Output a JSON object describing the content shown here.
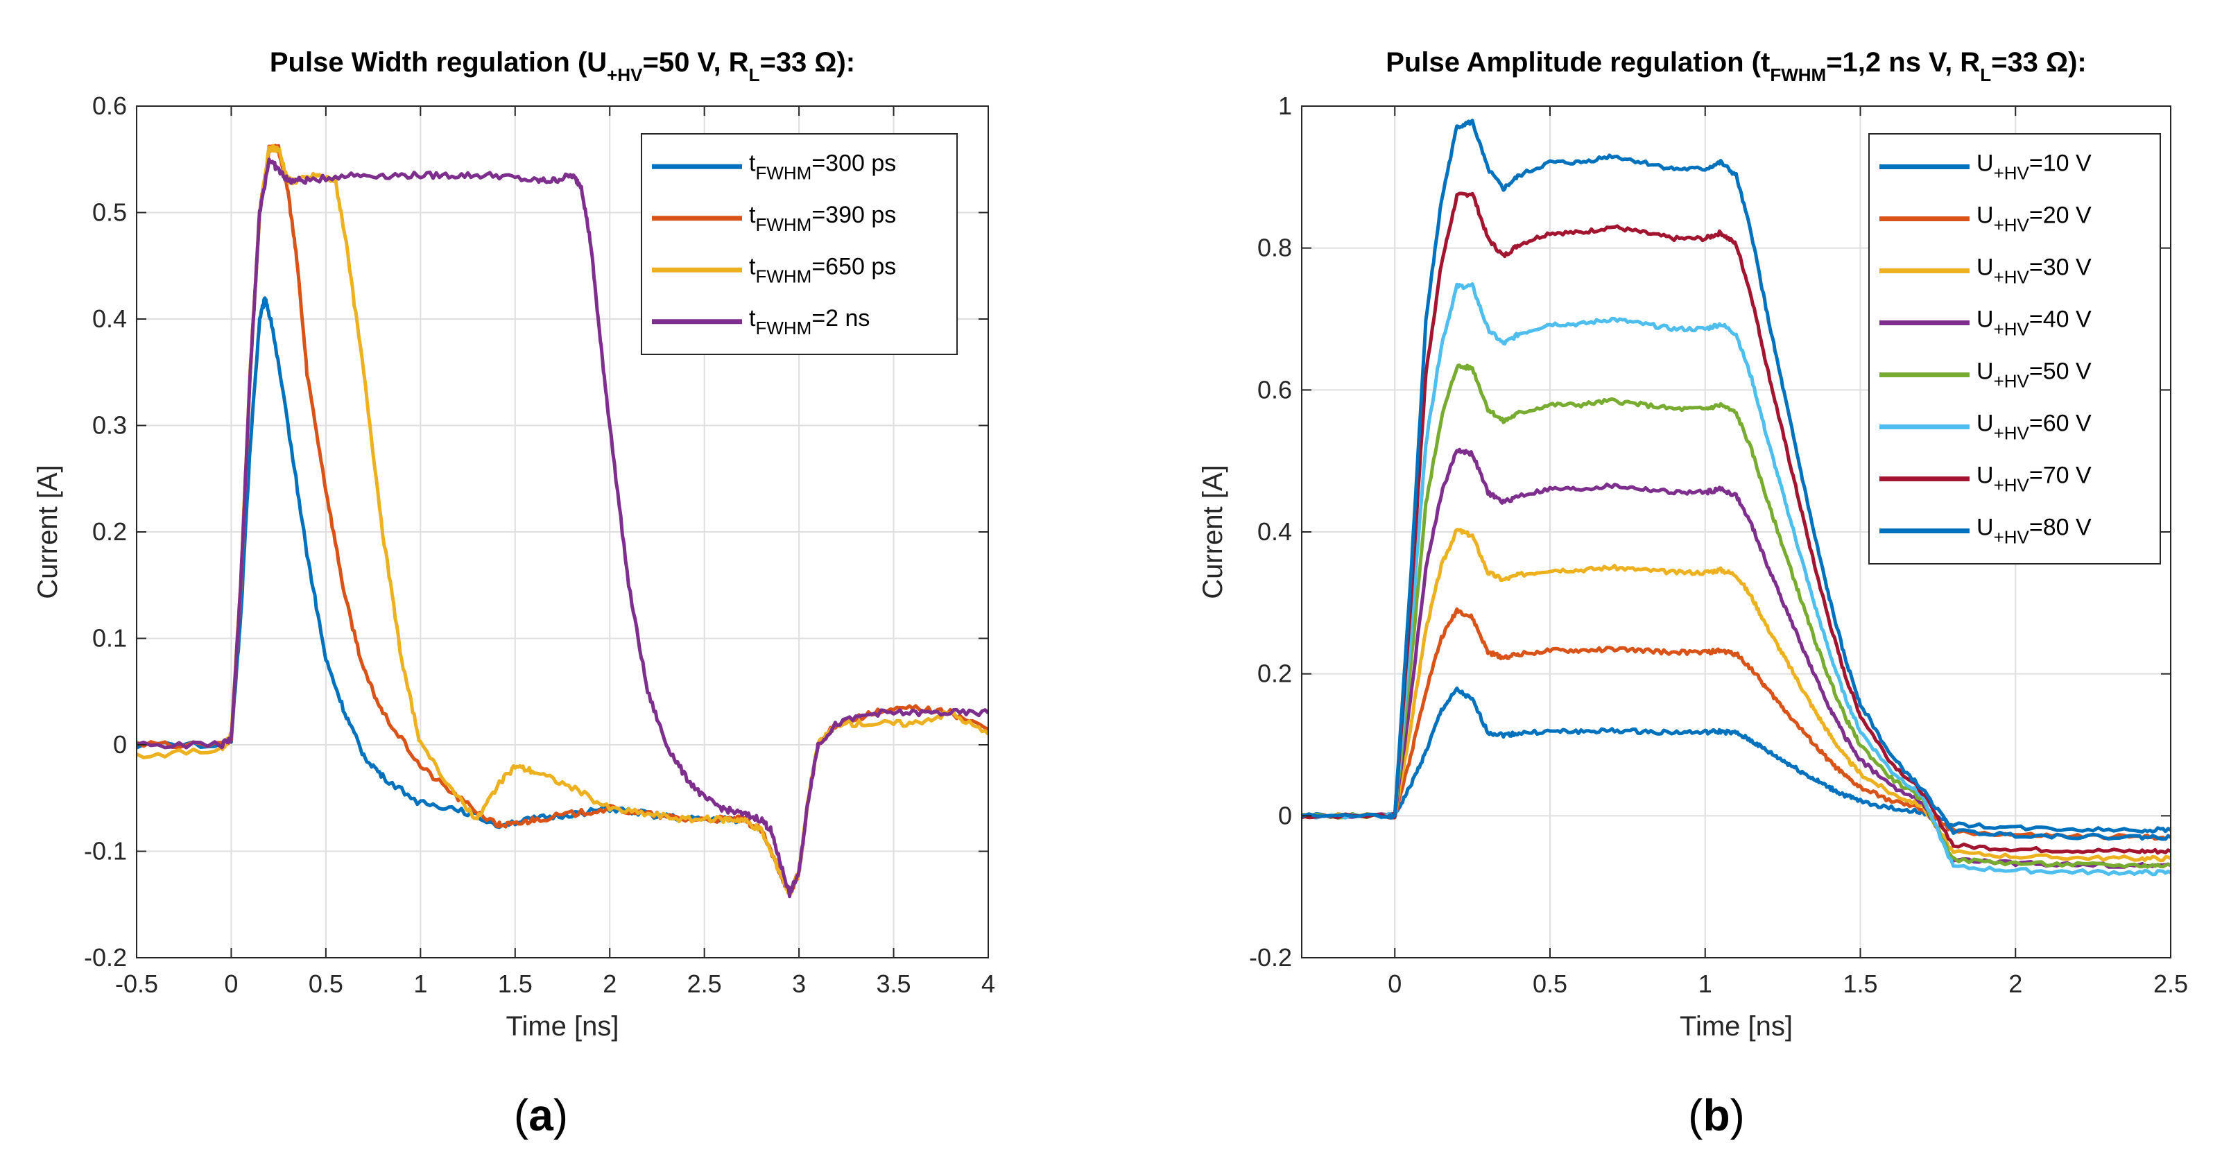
{
  "chart_data": [
    {
      "type": "line",
      "panel_label": "a",
      "title": {
        "prefix": "Pulse Width regulation (U",
        "sub": "+HV",
        "mid": "=50 V, R",
        "sub2": "L",
        "suffix": "=33 Ω):"
      },
      "xlabel": "Time [ns]",
      "ylabel": "Current [A]",
      "xlim": [
        -0.5,
        4
      ],
      "ylim": [
        -0.2,
        0.6
      ],
      "xticks": [
        -0.5,
        0,
        0.5,
        1,
        1.5,
        2,
        2.5,
        3,
        3.5,
        4
      ],
      "xtick_labels": [
        "-0.5",
        "0",
        "0.5",
        "1",
        "1.5",
        "2",
        "2.5",
        "3",
        "3.5",
        "4"
      ],
      "yticks": [
        -0.2,
        -0.1,
        0,
        0.1,
        0.2,
        0.3,
        0.4,
        0.5,
        0.6
      ],
      "ytick_labels": [
        "-0.2",
        "-0.1",
        "0",
        "0.1",
        "0.2",
        "0.3",
        "0.4",
        "0.5",
        "0.6"
      ],
      "grid": true,
      "legend_position": "top-right",
      "series": [
        {
          "name": "tFWHM=300 ps",
          "label_main": "t",
          "label_sub": "FWHM",
          "label_rest": "=300 ps",
          "color": "#0072BD",
          "x": [
            -0.5,
            -0.05,
            0.0,
            0.05,
            0.1,
            0.15,
            0.18,
            0.22,
            0.3,
            0.4,
            0.5,
            0.6,
            0.7,
            0.8,
            1.0,
            1.2,
            1.4,
            1.6,
            1.8,
            2.0,
            2.2,
            2.4,
            2.6,
            2.7
          ],
          "y": [
            0.0,
            0.0,
            0.005,
            0.12,
            0.28,
            0.4,
            0.42,
            0.39,
            0.3,
            0.18,
            0.08,
            0.03,
            -0.01,
            -0.03,
            -0.055,
            -0.06,
            -0.075,
            -0.07,
            -0.065,
            -0.06,
            -0.065,
            -0.07,
            -0.07,
            -0.07
          ]
        },
        {
          "name": "tFWHM=390 ps",
          "label_main": "t",
          "label_sub": "FWHM",
          "label_rest": "=390 ps",
          "color": "#D95319",
          "x": [
            -0.5,
            -0.05,
            0.0,
            0.05,
            0.1,
            0.15,
            0.2,
            0.25,
            0.3,
            0.35,
            0.4,
            0.5,
            0.6,
            0.7,
            0.8,
            1.0,
            1.2,
            1.4,
            1.5,
            1.6,
            1.8,
            2.0,
            2.2,
            2.4,
            2.6,
            2.7,
            2.8,
            2.9,
            2.95,
            3.0,
            3.05,
            3.1,
            3.2,
            3.4,
            3.6,
            3.8,
            4.0
          ],
          "y": [
            0.0,
            0.0,
            0.005,
            0.15,
            0.35,
            0.5,
            0.56,
            0.56,
            0.52,
            0.45,
            0.35,
            0.24,
            0.14,
            0.07,
            0.03,
            -0.02,
            -0.05,
            -0.075,
            -0.075,
            -0.07,
            -0.065,
            -0.06,
            -0.065,
            -0.07,
            -0.07,
            -0.07,
            -0.08,
            -0.12,
            -0.14,
            -0.12,
            -0.05,
            0.0,
            0.02,
            0.03,
            0.035,
            0.03,
            0.015
          ]
        },
        {
          "name": "tFWHM=650 ps",
          "label_main": "t",
          "label_sub": "FWHM",
          "label_rest": "=650 ps",
          "color": "#EDB120",
          "x": [
            -0.5,
            -0.05,
            0.0,
            0.05,
            0.1,
            0.15,
            0.2,
            0.25,
            0.3,
            0.35,
            0.45,
            0.55,
            0.6,
            0.7,
            0.8,
            0.9,
            1.0,
            1.2,
            1.3,
            1.4,
            1.5,
            1.6,
            1.8,
            2.0,
            2.2,
            2.4,
            2.6,
            2.7,
            2.8,
            2.9,
            2.95,
            3.0,
            3.05,
            3.1,
            3.2,
            3.4,
            3.6,
            3.8,
            4.0
          ],
          "y": [
            -0.01,
            -0.005,
            0.01,
            0.15,
            0.35,
            0.5,
            0.56,
            0.56,
            0.53,
            0.53,
            0.535,
            0.53,
            0.48,
            0.35,
            0.2,
            0.08,
            0.0,
            -0.05,
            -0.07,
            -0.04,
            -0.02,
            -0.025,
            -0.04,
            -0.06,
            -0.065,
            -0.07,
            -0.07,
            -0.07,
            -0.08,
            -0.12,
            -0.14,
            -0.12,
            -0.05,
            0.0,
            0.02,
            0.02,
            0.02,
            0.03,
            0.01
          ]
        },
        {
          "name": "tFWHM=2 ns",
          "label_main": "t",
          "label_sub": "FWHM",
          "label_rest": "=2 ns",
          "color": "#7E2F8E",
          "x": [
            -0.5,
            -0.05,
            0.0,
            0.05,
            0.1,
            0.15,
            0.2,
            0.25,
            0.3,
            0.4,
            0.6,
            0.8,
            1.0,
            1.2,
            1.4,
            1.6,
            1.7,
            1.8,
            1.85,
            1.9,
            1.95,
            2.0,
            2.1,
            2.2,
            2.3,
            2.4,
            2.5,
            2.6,
            2.7,
            2.8,
            2.85,
            2.9,
            2.95,
            3.0,
            3.05,
            3.1,
            3.2,
            3.4,
            3.6,
            3.8,
            4.0
          ],
          "y": [
            0.0,
            0.0,
            0.005,
            0.15,
            0.35,
            0.5,
            0.55,
            0.54,
            0.53,
            0.53,
            0.535,
            0.535,
            0.535,
            0.535,
            0.535,
            0.53,
            0.53,
            0.535,
            0.525,
            0.47,
            0.38,
            0.3,
            0.15,
            0.05,
            0.0,
            -0.03,
            -0.05,
            -0.06,
            -0.065,
            -0.07,
            -0.08,
            -0.11,
            -0.14,
            -0.12,
            -0.05,
            0.0,
            0.02,
            0.03,
            0.03,
            0.03,
            0.03
          ]
        }
      ]
    },
    {
      "type": "line",
      "panel_label": "b",
      "title": {
        "prefix": "Pulse Amplitude regulation (t",
        "sub": "FWHM",
        "mid": "=1,2 ns V, R",
        "sub2": "L",
        "suffix": "=33 Ω):"
      },
      "xlabel": "Time [ns]",
      "ylabel": "Current [A]",
      "xlim": [
        -0.3,
        2.5
      ],
      "ylim": [
        -0.2,
        1
      ],
      "xticks": [
        0,
        0.5,
        1,
        1.5,
        2,
        2.5
      ],
      "xtick_labels": [
        "0",
        "0.5",
        "1",
        "1.5",
        "2",
        "2.5"
      ],
      "yticks": [
        -0.2,
        0,
        0.2,
        0.4,
        0.6,
        0.8,
        1
      ],
      "ytick_labels": [
        "-0.2",
        "0",
        "0.2",
        "0.4",
        "0.6",
        "0.8",
        "1"
      ],
      "grid": true,
      "legend_position": "top-right",
      "series": [
        {
          "name": "U+HV=10 V",
          "label_main": "U",
          "label_sub": "+HV",
          "label_rest": "=10 V",
          "color": "#0072BD",
          "amp": 0.12,
          "tail": -0.02
        },
        {
          "name": "U+HV=20 V",
          "label_main": "U",
          "label_sub": "+HV",
          "label_rest": "=20 V",
          "color": "#D95319",
          "amp": 0.235,
          "tail": -0.03
        },
        {
          "name": "U+HV=30 V",
          "label_main": "U",
          "label_sub": "+HV",
          "label_rest": "=30 V",
          "color": "#EDB120",
          "amp": 0.35,
          "tail": -0.06
        },
        {
          "name": "U+HV=40 V",
          "label_main": "U",
          "label_sub": "+HV",
          "label_rest": "=40 V",
          "color": "#7E2F8E",
          "amp": 0.465,
          "tail": -0.07
        },
        {
          "name": "U+HV=50 V",
          "label_main": "U",
          "label_sub": "+HV",
          "label_rest": "=50 V",
          "color": "#77AC30",
          "amp": 0.585,
          "tail": -0.07
        },
        {
          "name": "U+HV=60 V",
          "label_main": "U",
          "label_sub": "+HV",
          "label_rest": "=60 V",
          "color": "#4DBEEE",
          "amp": 0.7,
          "tail": -0.08
        },
        {
          "name": "U+HV=70 V",
          "label_main": "U",
          "label_sub": "+HV",
          "label_rest": "=70 V",
          "color": "#A2142F",
          "amp": 0.83,
          "tail": -0.05
        },
        {
          "name": "U+HV=80 V",
          "label_main": "U",
          "label_sub": "+HV",
          "label_rest": "=80 V",
          "color": "#0072BD",
          "amp": 0.93,
          "tail": -0.03
        }
      ]
    }
  ]
}
